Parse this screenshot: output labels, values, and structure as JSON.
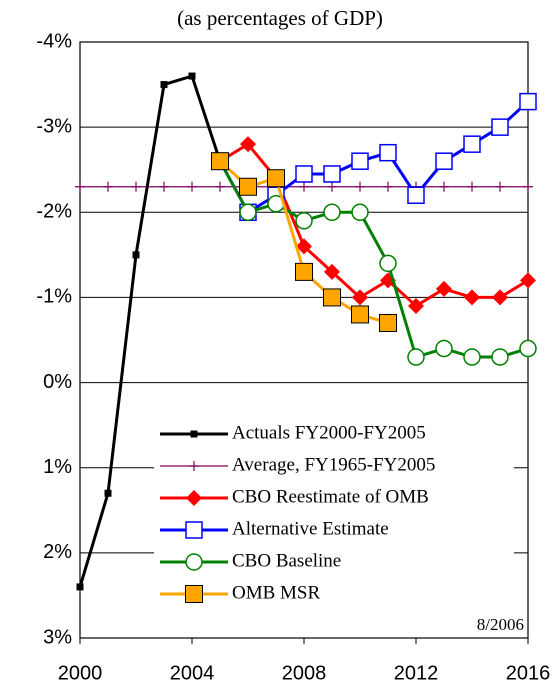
{
  "chart_data": {
    "type": "line",
    "title": "(as percentages of GDP)",
    "annotation": "8/2006",
    "xlim": [
      2000,
      2016
    ],
    "xticks": [
      2000,
      2004,
      2008,
      2012,
      2016
    ],
    "ylim": [
      -4,
      3
    ],
    "y_inverted": true,
    "yticks": [
      {
        "value": -4,
        "label": "-4%"
      },
      {
        "value": -3,
        "label": "-3%"
      },
      {
        "value": -2,
        "label": "-2%"
      },
      {
        "value": -1,
        "label": "-1%"
      },
      {
        "value": 0,
        "label": "0%"
      },
      {
        "value": 1,
        "label": "1%"
      },
      {
        "value": 2,
        "label": "2%"
      },
      {
        "value": 3,
        "label": "3%"
      }
    ],
    "grid": true,
    "series": [
      {
        "name": "Actuals FY2000-FY2005",
        "color": "#000000",
        "marker": "small-square",
        "x": [
          2000,
          2001,
          2002,
          2003,
          2004,
          2005
        ],
        "values": [
          2.4,
          1.3,
          -1.5,
          -3.5,
          -3.6,
          -2.6
        ]
      },
      {
        "name": "Average, FY1965-FY2005",
        "color": "#800060",
        "marker": "plus",
        "x": [
          2000,
          2001,
          2002,
          2003,
          2004,
          2005,
          2006,
          2007,
          2008,
          2009,
          2010,
          2011,
          2012,
          2013,
          2014,
          2015,
          2016
        ],
        "values": [
          -2.3,
          -2.3,
          -2.3,
          -2.3,
          -2.3,
          -2.3,
          -2.3,
          -2.3,
          -2.3,
          -2.3,
          -2.3,
          -2.3,
          -2.3,
          -2.3,
          -2.3,
          -2.3,
          -2.3
        ]
      },
      {
        "name": "CBO Reestimate of OMB",
        "color": "#ff0000",
        "marker": "diamond",
        "x": [
          2005,
          2006,
          2007,
          2008,
          2009,
          2010,
          2011,
          2012,
          2013,
          2014,
          2015,
          2016
        ],
        "values": [
          -2.6,
          -2.8,
          -2.4,
          -1.6,
          -1.3,
          -1.0,
          -1.2,
          -0.9,
          -1.1,
          -1.0,
          -1.0,
          -1.2
        ]
      },
      {
        "name": "Alternative Estimate",
        "color": "#0000ff",
        "marker": "open-square",
        "x": [
          2005,
          2006,
          2007,
          2008,
          2009,
          2010,
          2011,
          2012,
          2013,
          2014,
          2015,
          2016
        ],
        "values": [
          -2.6,
          -2.0,
          -2.2,
          -2.45,
          -2.45,
          -2.6,
          -2.7,
          -2.2,
          -2.6,
          -2.8,
          -3.0,
          -3.3
        ]
      },
      {
        "name": "CBO Baseline",
        "color": "#008000",
        "marker": "open-circle",
        "x": [
          2005,
          2006,
          2007,
          2008,
          2009,
          2010,
          2011,
          2012,
          2013,
          2014,
          2015,
          2016
        ],
        "values": [
          -2.6,
          -2.0,
          -2.1,
          -1.9,
          -2.0,
          -2.0,
          -1.4,
          -0.3,
          -0.4,
          -0.3,
          -0.3,
          -0.4
        ]
      },
      {
        "name": "OMB MSR",
        "color": "#ffa500",
        "marker": "filled-square",
        "x": [
          2005,
          2006,
          2007,
          2008,
          2009,
          2010,
          2011
        ],
        "values": [
          -2.6,
          -2.3,
          -2.4,
          -1.3,
          -1.0,
          -0.8,
          -0.7
        ]
      }
    ]
  }
}
